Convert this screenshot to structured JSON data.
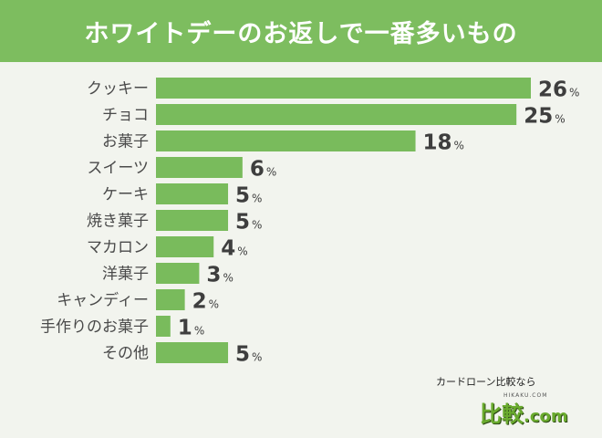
{
  "title": "ホワイトデーのお返しで一番多いもの",
  "colors": {
    "header": "#7dbd5f",
    "bar": "#79bb5c",
    "label": "#4a4a4a",
    "value": "#3e3e3e",
    "background": "#f2f4ee"
  },
  "chart_data": {
    "type": "bar",
    "orientation": "horizontal",
    "title": "ホワイトデーのお返しで一番多いもの",
    "categories": [
      "クッキー",
      "チョコ",
      "お菓子",
      "スイーツ",
      "ケーキ",
      "焼き菓子",
      "マカロン",
      "洋菓子",
      "キャンディー",
      "手作りのお菓子",
      "その他"
    ],
    "values": [
      26,
      25,
      18,
      6,
      5,
      5,
      4,
      3,
      2,
      1,
      5
    ],
    "unit": "%",
    "xlim": [
      0,
      26
    ],
    "grid": false,
    "legend": "none"
  },
  "brand": {
    "tagline": "カードローン比較なら",
    "sub": "HIKAKU.COM",
    "logo_main": "比較",
    "logo_suffix": ".com"
  }
}
